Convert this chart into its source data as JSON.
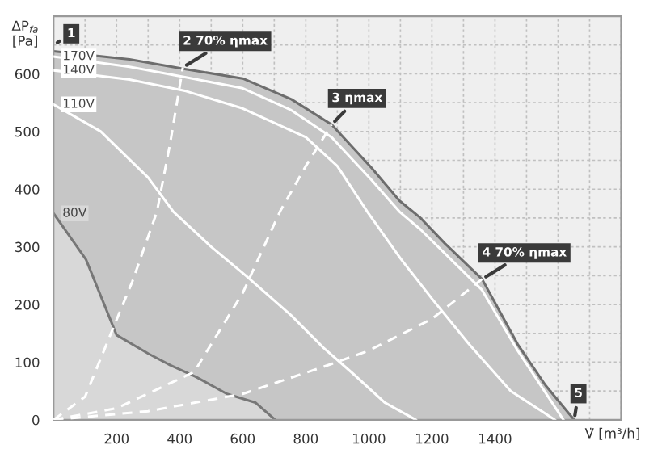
{
  "chart_data": {
    "type": "line",
    "xlabel": "V̇ [m³/h]",
    "ylabel": "ΔP$_{fa}$\n[Pa]",
    "xlim": [
      0,
      1800
    ],
    "ylim": [
      0,
      700
    ],
    "xticks": [
      {
        "value": 0,
        "label": null
      },
      {
        "value": 100,
        "label": null
      },
      200,
      {
        "value": 300,
        "label": null
      },
      400,
      {
        "value": 500,
        "label": null
      },
      600,
      {
        "value": 700,
        "label": null
      },
      800,
      {
        "value": 900,
        "label": null
      },
      1000,
      {
        "value": 1100,
        "label": null
      },
      1200,
      {
        "value": 1300,
        "label": null
      },
      1400,
      {
        "value": 1500,
        "label": null
      },
      {
        "value": 1600,
        "label": null
      },
      {
        "value": 1700,
        "label": null
      },
      {
        "value": 1800,
        "label": null
      }
    ],
    "yticks": [
      0,
      {
        "value": 50,
        "label": null
      },
      100,
      {
        "value": 150,
        "label": null
      },
      200,
      {
        "value": 250,
        "label": null
      },
      300,
      {
        "value": 350,
        "label": null
      },
      400,
      {
        "value": 450,
        "label": null
      },
      500,
      {
        "value": 550,
        "label": null
      },
      600,
      {
        "value": 650,
        "label": null
      },
      {
        "value": 700,
        "label": null
      }
    ],
    "grid": true,
    "series": [
      {
        "type": "area",
        "color": "#c6c6c6",
        "x": [
          0,
          241,
          420,
          600,
          754,
          882,
          1010,
          1097,
          1164,
          1241,
          1359,
          1472,
          1560,
          1651
        ],
        "values": [
          639,
          625,
          608,
          592,
          556,
          512,
          436,
          380,
          350,
          306,
          244,
          131,
          60,
          0
        ]
      },
      {
        "type": "area",
        "name": "80V",
        "color": "#d8d8d8",
        "x": [
          0,
          103,
          200,
          300,
          370,
          450,
          550,
          640,
          703
        ],
        "values": [
          358,
          278,
          147,
          115,
          95,
          75,
          45,
          30,
          0
        ]
      },
      {
        "name": "170V",
        "color": "#ffffff",
        "x": [
          0,
          241,
          420,
          600,
          754,
          882,
          1010,
          1097,
          1164,
          1359,
          1472,
          1617
        ],
        "values": [
          630,
          612,
          594,
          575,
          537,
          490,
          415,
          361,
          330,
          225,
          120,
          0
        ]
      },
      {
        "name": "140V",
        "color": "#ffffff",
        "x": [
          0,
          241,
          420,
          600,
          800,
          900,
          995,
          1100,
          1200,
          1318,
          1450,
          1590
        ],
        "values": [
          606,
          590,
          570,
          540,
          490,
          440,
          361,
          280,
          210,
          131,
          50,
          0
        ]
      },
      {
        "name": "110V",
        "color": "#ffffff",
        "x": [
          0,
          150,
          300,
          380,
          500,
          610,
          754,
          856,
          950,
          1050,
          1149
        ],
        "values": [
          547,
          500,
          420,
          361,
          300,
          250,
          181,
          125,
          80,
          30,
          0
        ]
      },
      {
        "line_style": "dashed",
        "color": "#ffffff",
        "x": [
          0,
          100,
          174,
          250,
          328,
          370,
          410
        ],
        "values": [
          0,
          40,
          139,
          240,
          361,
          480,
          611
        ]
      },
      {
        "line_style": "dashed",
        "color": "#ffffff",
        "x": [
          0,
          200,
          446,
          600,
          718,
          800,
          882
        ],
        "values": [
          0,
          20,
          83,
          220,
          361,
          440,
          512
        ]
      },
      {
        "line_style": "dashed",
        "color": "#ffffff",
        "x": [
          0,
          300,
          600,
          856,
          1000,
          1200,
          1359
        ],
        "values": [
          0,
          15,
          45,
          92,
          120,
          175,
          244
        ]
      }
    ],
    "annotations": [
      {
        "text": "1",
        "x": 0,
        "y": 650
      },
      {
        "text": "2 70% ηmax",
        "x": 410,
        "y": 611
      },
      {
        "text": "3 ηmax",
        "x": 882,
        "y": 512
      },
      {
        "text": "4 70% ηmax",
        "x": 1359,
        "y": 244
      },
      {
        "text": "5",
        "x": 1651,
        "y": 0
      }
    ]
  }
}
